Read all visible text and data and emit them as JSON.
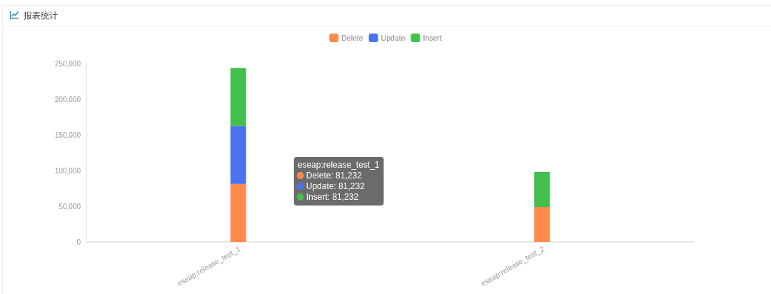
{
  "chart_data": {
    "type": "bar",
    "title": "报表统计",
    "categories": [
      "eseap:release_test_1",
      "eseap:release_test_2"
    ],
    "series": [
      {
        "name": "Delete",
        "color": "#ff8a4c",
        "values": [
          81232,
          49000
        ]
      },
      {
        "name": "Update",
        "color": "#4a72ee",
        "values": [
          81232,
          null
        ]
      },
      {
        "name": "Insert",
        "color": "#43c04b",
        "values": [
          81232,
          49000
        ]
      }
    ],
    "stacked": true,
    "ylim": [
      0,
      250000
    ],
    "yticks": [
      0,
      {
        "value": 50000,
        "label": "50,000"
      },
      {
        "value": 100000,
        "label": "100,000"
      },
      {
        "value": 150000,
        "label": "150,000"
      },
      {
        "value": 200000,
        "label": "200,000"
      },
      {
        "value": 250000,
        "label": "250,000"
      }
    ],
    "legend": "top",
    "annotations": [
      "eseap:release_test_1",
      "Delete: 81,232",
      "Update: 81,232",
      "Insert: 81,232"
    ]
  }
}
